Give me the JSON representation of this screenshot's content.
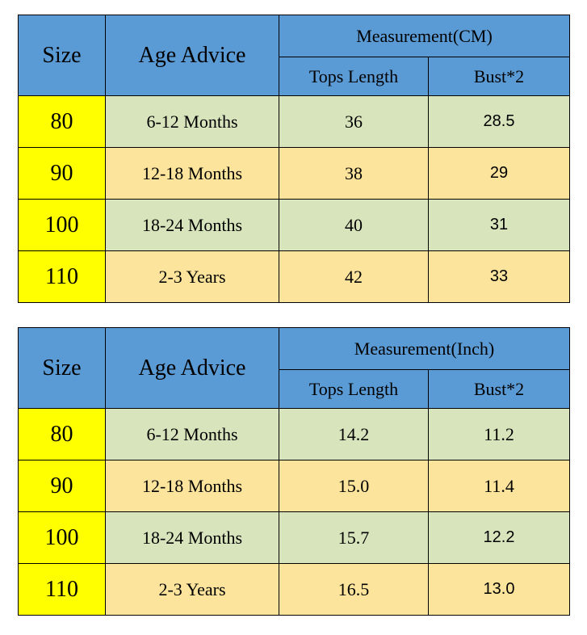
{
  "colors": {
    "header_blue": "#5b9bd5",
    "size_yellow": "#ffff00",
    "row_green": "#d8e4bc",
    "row_tan": "#fce49c",
    "border": "#000000",
    "text": "#000000"
  },
  "tables": [
    {
      "id": "cm",
      "headers": {
        "size": "Size",
        "age": "Age Advice",
        "measurement": "Measurement(CM)",
        "tops": "Tops Length",
        "bust": "Bust*2"
      },
      "rows": [
        {
          "size": "80",
          "age": "6-12 Months",
          "tops": "36",
          "bust": "28.5"
        },
        {
          "size": "90",
          "age": "12-18 Months",
          "tops": "38",
          "bust": "29"
        },
        {
          "size": "100",
          "age": "18-24 Months",
          "tops": "40",
          "bust": "31"
        },
        {
          "size": "110",
          "age": "2-3 Years",
          "tops": "42",
          "bust": "33"
        }
      ]
    },
    {
      "id": "inch",
      "headers": {
        "size": "Size",
        "age": "Age Advice",
        "measurement": "Measurement(Inch)",
        "tops": "Tops Length",
        "bust": "Bust*2"
      },
      "rows": [
        {
          "size": "80",
          "age": "6-12 Months",
          "tops": "14.2",
          "bust": "11.2"
        },
        {
          "size": "90",
          "age": "12-18 Months",
          "tops": "15.0",
          "bust": "11.4"
        },
        {
          "size": "100",
          "age": "18-24 Months",
          "tops": "15.7",
          "bust": "12.2"
        },
        {
          "size": "110",
          "age": "2-3 Years",
          "tops": "16.5",
          "bust": "13.0"
        }
      ]
    }
  ],
  "chart_data": [
    {
      "type": "table",
      "title": "Measurement(CM)",
      "columns": [
        "Size",
        "Age Advice",
        "Tops Length",
        "Bust*2"
      ],
      "rows": [
        [
          "80",
          "6-12 Months",
          36,
          28.5
        ],
        [
          "90",
          "12-18 Months",
          38,
          29
        ],
        [
          "100",
          "18-24 Months",
          40,
          31
        ],
        [
          "110",
          "2-3 Years",
          42,
          33
        ]
      ]
    },
    {
      "type": "table",
      "title": "Measurement(Inch)",
      "columns": [
        "Size",
        "Age Advice",
        "Tops Length",
        "Bust*2"
      ],
      "rows": [
        [
          "80",
          "6-12 Months",
          14.2,
          11.2
        ],
        [
          "90",
          "12-18 Months",
          15.0,
          11.4
        ],
        [
          "100",
          "18-24 Months",
          15.7,
          12.2
        ],
        [
          "110",
          "2-3 Years",
          16.5,
          13.0
        ]
      ]
    }
  ]
}
